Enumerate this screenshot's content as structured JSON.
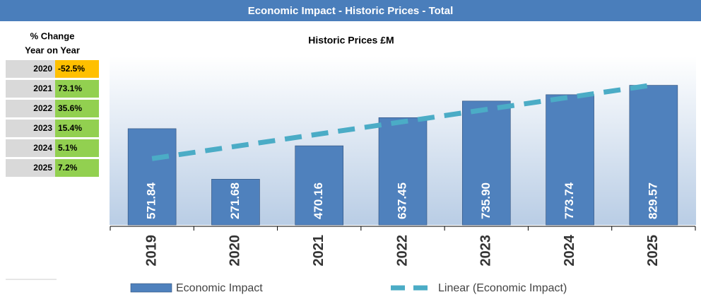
{
  "header": {
    "title": "Economic Impact - Historic Prices - Total"
  },
  "table": {
    "title_lines": [
      "% Change",
      "Year on Year"
    ],
    "rows": [
      {
        "year": "2020",
        "change": "-52.5%",
        "color": "#ffc000"
      },
      {
        "year": "2021",
        "change": "73.1%",
        "color": "#92d050"
      },
      {
        "year": "2022",
        "change": "35.6%",
        "color": "#92d050"
      },
      {
        "year": "2023",
        "change": "15.4%",
        "color": "#92d050"
      },
      {
        "year": "2024",
        "change": "5.1%",
        "color": "#92d050"
      },
      {
        "year": "2025",
        "change": "7.2%",
        "color": "#92d050"
      }
    ]
  },
  "chart_data": {
    "type": "bar",
    "title": "Historic Prices £M",
    "categories": [
      "2019",
      "2020",
      "2021",
      "2022",
      "2023",
      "2024",
      "2025"
    ],
    "series": [
      {
        "name": "Economic Impact",
        "color": "#4f81bd",
        "values": [
          571.84,
          271.68,
          470.16,
          637.45,
          735.9,
          773.74,
          829.57
        ],
        "value_labels": [
          "571.84",
          "271.68",
          "470.16",
          "637.45",
          "735.90",
          "773.74",
          "829.57"
        ]
      }
    ],
    "trendline": {
      "name": "Linear (Economic Impact)",
      "color": "#4bacc6"
    },
    "ylim": [
      0,
      1000
    ]
  }
}
